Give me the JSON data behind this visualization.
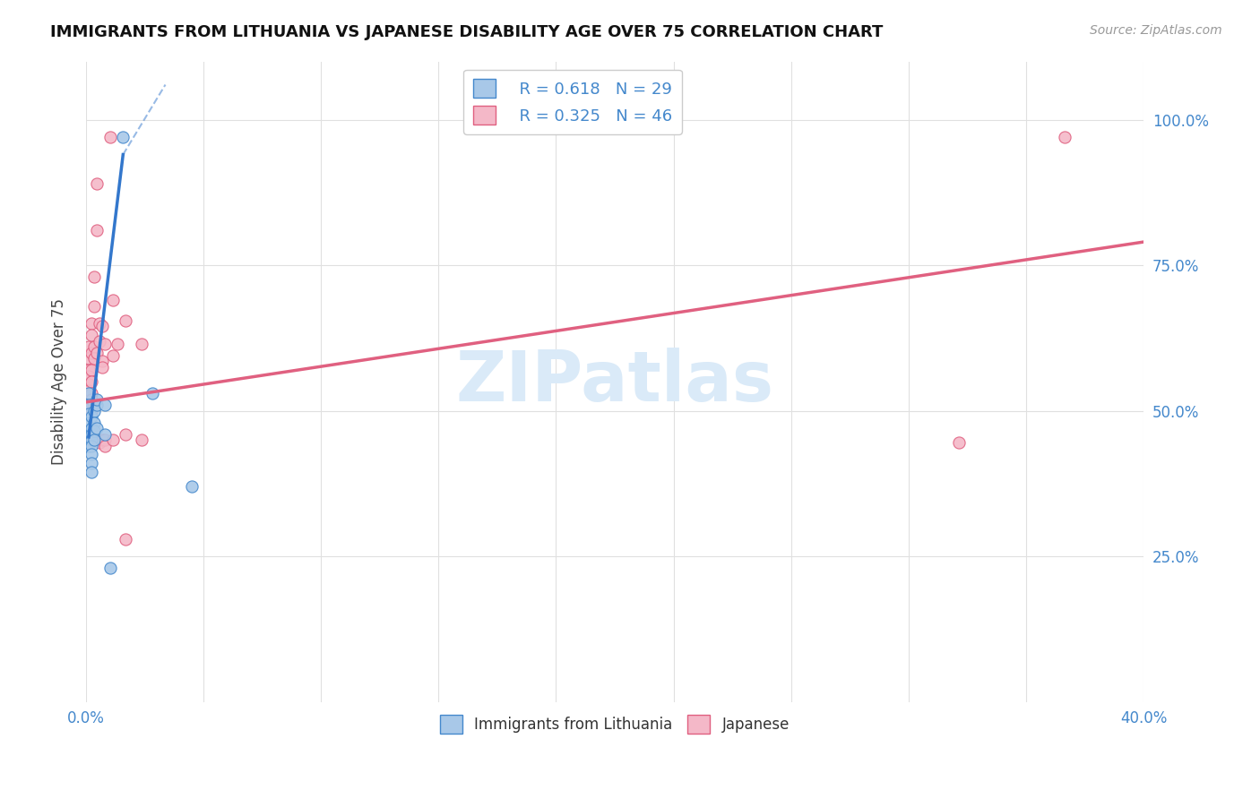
{
  "title": "IMMIGRANTS FROM LITHUANIA VS JAPANESE DISABILITY AGE OVER 75 CORRELATION CHART",
  "source": "Source: ZipAtlas.com",
  "ylabel": "Disability Age Over 75",
  "yticks_right": [
    "100.0%",
    "75.0%",
    "50.0%",
    "25.0%"
  ],
  "legend_blue_r": "R = 0.618",
  "legend_blue_n": "N = 29",
  "legend_pink_r": "R = 0.325",
  "legend_pink_n": "N = 46",
  "blue_scatter_color": "#a8c8e8",
  "pink_scatter_color": "#f4b8c8",
  "blue_edge_color": "#4488cc",
  "pink_edge_color": "#e06080",
  "blue_line_color": "#3377cc",
  "pink_line_color": "#e06080",
  "blue_label": "Immigrants from Lithuania",
  "pink_label": "Japanese",
  "background_color": "#ffffff",
  "grid_color": "#e0e0e0",
  "title_color": "#111111",
  "axis_label_color": "#4488cc",
  "watermark_color": "#daeaf8",
  "blue_scatter": [
    [
      0.001,
      0.53
    ],
    [
      0.001,
      0.51
    ],
    [
      0.001,
      0.495
    ],
    [
      0.001,
      0.48
    ],
    [
      0.001,
      0.465
    ],
    [
      0.001,
      0.45
    ],
    [
      0.001,
      0.445
    ],
    [
      0.001,
      0.44
    ],
    [
      0.002,
      0.49
    ],
    [
      0.002,
      0.47
    ],
    [
      0.002,
      0.46
    ],
    [
      0.002,
      0.45
    ],
    [
      0.002,
      0.44
    ],
    [
      0.002,
      0.425
    ],
    [
      0.002,
      0.41
    ],
    [
      0.002,
      0.395
    ],
    [
      0.003,
      0.5
    ],
    [
      0.003,
      0.48
    ],
    [
      0.003,
      0.465
    ],
    [
      0.003,
      0.45
    ],
    [
      0.004,
      0.51
    ],
    [
      0.004,
      0.47
    ],
    [
      0.004,
      0.52
    ],
    [
      0.007,
      0.51
    ],
    [
      0.007,
      0.46
    ],
    [
      0.009,
      0.23
    ],
    [
      0.014,
      0.97
    ],
    [
      0.025,
      0.53
    ],
    [
      0.04,
      0.37
    ]
  ],
  "pink_scatter": [
    [
      0.001,
      0.61
    ],
    [
      0.001,
      0.59
    ],
    [
      0.001,
      0.57
    ],
    [
      0.001,
      0.56
    ],
    [
      0.001,
      0.545
    ],
    [
      0.001,
      0.535
    ],
    [
      0.001,
      0.525
    ],
    [
      0.001,
      0.51
    ],
    [
      0.002,
      0.65
    ],
    [
      0.002,
      0.63
    ],
    [
      0.002,
      0.6
    ],
    [
      0.002,
      0.57
    ],
    [
      0.002,
      0.55
    ],
    [
      0.002,
      0.53
    ],
    [
      0.002,
      0.52
    ],
    [
      0.002,
      0.5
    ],
    [
      0.003,
      0.73
    ],
    [
      0.003,
      0.68
    ],
    [
      0.003,
      0.61
    ],
    [
      0.003,
      0.59
    ],
    [
      0.004,
      0.89
    ],
    [
      0.004,
      0.81
    ],
    [
      0.004,
      0.6
    ],
    [
      0.005,
      0.65
    ],
    [
      0.005,
      0.62
    ],
    [
      0.005,
      0.45
    ],
    [
      0.005,
      0.445
    ],
    [
      0.006,
      0.645
    ],
    [
      0.006,
      0.585
    ],
    [
      0.006,
      0.575
    ],
    [
      0.006,
      0.45
    ],
    [
      0.007,
      0.615
    ],
    [
      0.007,
      0.45
    ],
    [
      0.007,
      0.44
    ],
    [
      0.009,
      0.97
    ],
    [
      0.01,
      0.69
    ],
    [
      0.01,
      0.595
    ],
    [
      0.01,
      0.45
    ],
    [
      0.012,
      0.615
    ],
    [
      0.015,
      0.655
    ],
    [
      0.015,
      0.46
    ],
    [
      0.015,
      0.28
    ],
    [
      0.021,
      0.615
    ],
    [
      0.021,
      0.45
    ],
    [
      0.37,
      0.97
    ],
    [
      0.33,
      0.445
    ]
  ],
  "blue_trendline_solid": [
    [
      0.001,
      0.455
    ],
    [
      0.014,
      0.94
    ]
  ],
  "blue_trendline_dash": [
    [
      0.014,
      0.94
    ],
    [
      0.03,
      1.06
    ]
  ],
  "pink_trendline": [
    [
      0.0,
      0.515
    ],
    [
      0.4,
      0.79
    ]
  ],
  "xlim": [
    0.0,
    0.4
  ],
  "ylim": [
    0.0,
    1.1
  ],
  "xtick_count": 9,
  "ytick_positions": [
    0.25,
    0.5,
    0.75,
    1.0
  ]
}
